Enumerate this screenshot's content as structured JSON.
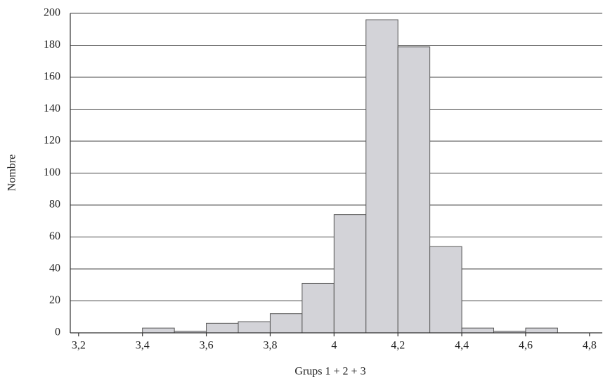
{
  "chart_data": {
    "type": "histogram",
    "x_label": "Grups 1 + 2 + 3",
    "y_label": "Nombre",
    "bins": [
      3.4,
      3.5,
      3.6,
      3.7,
      3.8,
      3.9,
      4.0,
      4.1,
      4.2,
      4.3,
      4.4,
      4.5,
      4.6,
      4.7
    ],
    "values": [
      3,
      1,
      6,
      7,
      12,
      31,
      74,
      196,
      179,
      54,
      3,
      1,
      3
    ],
    "color": "#d3d3d8",
    "edge_color": "#555555",
    "xlim": [
      3.174,
      4.84
    ],
    "xticks": [
      {
        "value": 3.2,
        "label": "3,2"
      },
      {
        "value": 3.4,
        "label": "3,4"
      },
      {
        "value": 3.6,
        "label": "3,6"
      },
      {
        "value": 3.8,
        "label": "3,8"
      },
      4,
      {
        "value": 4.2,
        "label": "4,2"
      },
      {
        "value": 4.4,
        "label": "4,4"
      },
      {
        "value": 4.6,
        "label": "4,6"
      },
      {
        "value": 4.8,
        "label": "4,8"
      }
    ],
    "ylim": [
      0,
      200
    ],
    "yticks": [
      0,
      20,
      40,
      60,
      80,
      100,
      120,
      140,
      160,
      180,
      200
    ],
    "grid": true
  }
}
